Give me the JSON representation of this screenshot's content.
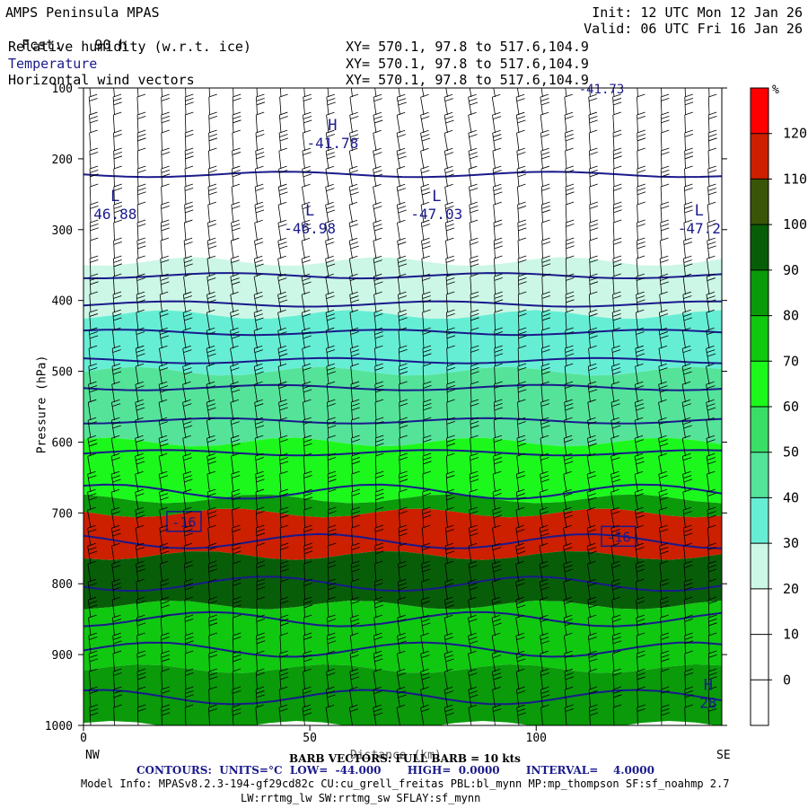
{
  "header": {
    "model": "AMPS Peninsula MPAS",
    "fcst_label": "Fcst:",
    "fcst_value": "90 h",
    "init": "Init: 12 UTC Mon 12 Jan 26",
    "valid": "Valid: 06 UTC Fri 16 Jan 26",
    "fields": [
      {
        "name": "Relative humidity (w.r.t. ice)",
        "xy": "XY= 570.1, 97.8 to 517.6,104.9"
      },
      {
        "name": "Temperature",
        "xy": "XY= 570.1, 97.8 to 517.6,104.9"
      },
      {
        "name": "Horizontal wind vectors",
        "xy": "XY= 570.1, 97.8 to 517.6,104.9"
      }
    ]
  },
  "colors": {
    "temperature_contour": "#1a1a8c",
    "barb": "#000000"
  },
  "chart_data": {
    "type": "heatmap",
    "ylabel": "Pressure (hPa)",
    "xlabel": "Distance (km)",
    "x_range": [
      0,
      141
    ],
    "y_range": [
      1000,
      100
    ],
    "y_ticks": [
      100,
      200,
      300,
      400,
      500,
      600,
      700,
      800,
      900,
      1000
    ],
    "x_ticks": [
      0,
      50,
      100
    ],
    "x_end_labels": {
      "left": "NW",
      "right": "SE"
    },
    "colorbar": {
      "unit": "%",
      "levels": [
        0,
        10,
        20,
        30,
        40,
        50,
        60,
        70,
        80,
        90,
        100,
        110,
        120
      ],
      "colors": [
        "#ffffff",
        "#ffffff",
        "#ffffff",
        "#ccf7e6",
        "#66eed5",
        "#55e399",
        "#3ade66",
        "#1cf81c",
        "#10c810",
        "#0a9a0a",
        "#085e08",
        "#3a5508",
        "#cc2000",
        "#ff0000"
      ]
    },
    "rh_field": {
      "description_levels_by_band": [
        {
          "p_top": 100,
          "p_bottom": 345,
          "rh_class": 0
        },
        {
          "p_top": 345,
          "p_bottom": 420,
          "rh_class": 3
        },
        {
          "p_top": 420,
          "p_bottom": 500,
          "rh_class": 4
        },
        {
          "p_top": 500,
          "p_bottom": 600,
          "rh_class": 5
        },
        {
          "p_top": 600,
          "p_bottom": 680,
          "rh_class": 7
        },
        {
          "p_top": 680,
          "p_bottom": 700,
          "rh_class": 9
        },
        {
          "p_top": 700,
          "p_bottom": 760,
          "rh_class": 12
        },
        {
          "p_top": 760,
          "p_bottom": 830,
          "rh_class": 10
        },
        {
          "p_top": 830,
          "p_bottom": 920,
          "rh_class": 8
        },
        {
          "p_top": 920,
          "p_bottom": 1000,
          "rh_class": 9
        }
      ]
    },
    "temperature_contours": {
      "units": "°C",
      "low": -44.0,
      "high": 0.0,
      "interval": 4.0,
      "levels": [
        {
          "p": 222
        },
        {
          "p": 365
        },
        {
          "p": 405
        },
        {
          "p": 445
        },
        {
          "p": 485
        },
        {
          "p": 523
        },
        {
          "p": 570
        },
        {
          "p": 615
        },
        {
          "p": 670
        },
        {
          "p": 740,
          "label": "-16"
        },
        {
          "p": 800
        },
        {
          "p": 850
        },
        {
          "p": 893
        },
        {
          "p": 960
        }
      ],
      "labels": [
        {
          "text": "-16",
          "x": 22,
          "p": 712
        },
        {
          "text": "-16",
          "x": 118,
          "p": 733
        }
      ]
    },
    "annotations": [
      {
        "text": "H",
        "value": "-41.78",
        "x": 55,
        "p": 170
      },
      {
        "text": "L",
        "value": "46.88",
        "x": 7,
        "p": 270
      },
      {
        "text": "L",
        "value": "-46.98",
        "x": 50,
        "p": 290
      },
      {
        "text": "L",
        "value": "-47.03",
        "x": 78,
        "p": 270
      },
      {
        "text": "L",
        "value": "-47.2",
        "x": 136,
        "p": 290
      },
      {
        "text": "H",
        "value": "28",
        "x": 138,
        "p": 960
      }
    ],
    "top_cut_label": "-41.73"
  },
  "footer": {
    "barb_caption": "BARB VECTORS: FULL BARB = 10 kts",
    "contours_caption": "CONTOURS:  UNITS=°C  LOW=  -44.000       HIGH=  0.0000       INTERVAL=    4.0000",
    "model_info_1": "Model Info: MPASv8.2.3-194-gf29cd82c CU:cu_grell_freitas PBL:bl_mynn MP:mp_thompson SF:sf_noahmp 2.7",
    "model_info_2": "LW:rrtmg_lw SW:rrtmg_sw SFLAY:sf_mynn"
  }
}
